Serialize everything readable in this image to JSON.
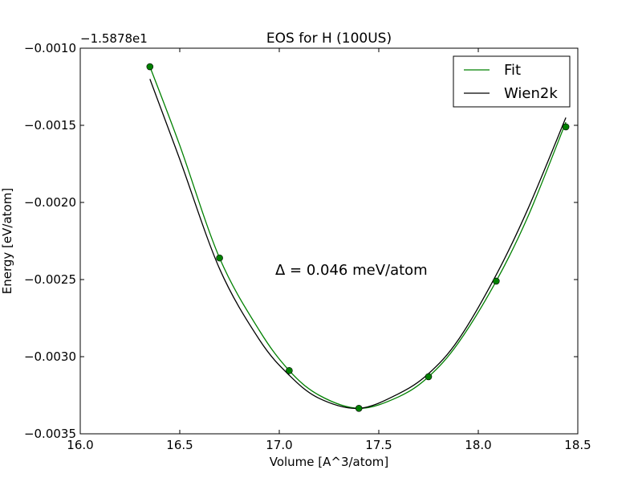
{
  "chart_data": {
    "type": "line",
    "title": "EOS for H (100US)",
    "xlabel": "Volume [A^3/atom]",
    "ylabel": "Energy [eV/atom]",
    "offset_text": "−1.5878e1",
    "xlim": [
      16.0,
      18.5
    ],
    "ylim": [
      -0.0035,
      -0.001
    ],
    "xticks": [
      16.0,
      16.5,
      17.0,
      17.5,
      18.0,
      18.5
    ],
    "xtick_labels": [
      "16.0",
      "16.5",
      "17.0",
      "17.5",
      "18.0",
      "18.5"
    ],
    "yticks": [
      -0.001,
      -0.0015,
      -0.002,
      -0.0025,
      -0.003,
      -0.0035
    ],
    "ytick_labels": [
      "−0.0010",
      "−0.0015",
      "−0.0020",
      "−0.0025",
      "−0.0030",
      "−0.0035"
    ],
    "annotation": "Δ = 0.046 meV/atom",
    "legend_position": "top-right",
    "grid": false,
    "series": [
      {
        "name": "Fit",
        "color": "#008000",
        "style": "line",
        "x": [
          16.35,
          16.5,
          16.7,
          16.9,
          17.05,
          17.2,
          17.4,
          17.6,
          17.75,
          17.9,
          18.09,
          18.25,
          18.44
        ],
        "y": [
          -0.00112,
          -0.00163,
          -0.00236,
          -0.00283,
          -0.00309,
          -0.00325,
          -0.003335,
          -0.00326,
          -0.00313,
          -0.00291,
          -0.00251,
          -0.00209,
          -0.00148
        ]
      },
      {
        "name": "Wien2k",
        "color": "#000000",
        "style": "line",
        "x": [
          16.35,
          16.5,
          16.7,
          16.9,
          17.05,
          17.2,
          17.4,
          17.6,
          17.75,
          17.9,
          18.09,
          18.25,
          18.44
        ],
        "y": [
          -0.0012,
          -0.00172,
          -0.00243,
          -0.00289,
          -0.00312,
          -0.00327,
          -0.003335,
          -0.00324,
          -0.00311,
          -0.00289,
          -0.00247,
          -0.00204,
          -0.00145
        ]
      },
      {
        "name": "",
        "color": "#008000",
        "style": "points",
        "x": [
          16.35,
          16.7,
          17.05,
          17.4,
          17.75,
          18.09,
          18.44
        ],
        "y": [
          -0.00112,
          -0.00236,
          -0.00309,
          -0.003335,
          -0.00313,
          -0.00251,
          -0.00151
        ]
      }
    ]
  }
}
